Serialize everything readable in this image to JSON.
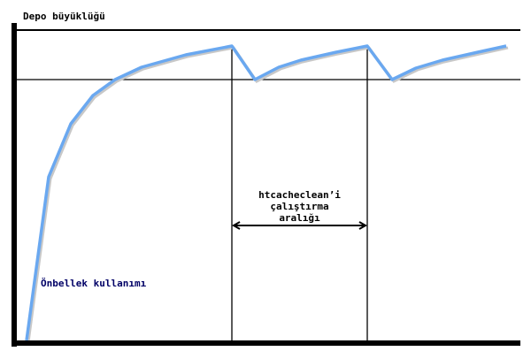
{
  "labels": {
    "y_axis": "Depo büyüklüğü",
    "curve": "Önbellek kullanımı",
    "interval_line1": "htcacheclean’i",
    "interval_line2": "çalıştırma",
    "interval_line3": "aralığı"
  },
  "colors": {
    "curve": "#6aa8f0",
    "curve_label": "#000066",
    "axes": "#000000"
  }
}
